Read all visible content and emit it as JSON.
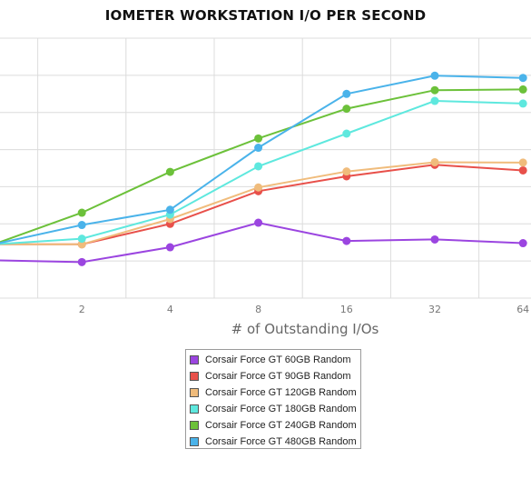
{
  "chart_data": {
    "type": "line",
    "title": "IOMETER WORKSTATION I/O PER SECOND",
    "xlabel": "# of Outstanding I/Os",
    "ylabel": "",
    "x": [
      1,
      2,
      4,
      8,
      16,
      32,
      64
    ],
    "x_tick_labels": [
      "",
      "2",
      "4",
      "8",
      "16",
      "32",
      "64"
    ],
    "x_scale": "log2",
    "ylim": [
      0,
      7
    ],
    "grid": true,
    "legend_position": "bottom",
    "series": [
      {
        "name": "Corsair Force GT 60GB Random",
        "color": "#9b45e0",
        "values": [
          1.02,
          0.97,
          1.37,
          2.03,
          1.54,
          1.58,
          1.48
        ]
      },
      {
        "name": "Corsair Force GT 90GB Random",
        "color": "#e8504a",
        "values": [
          1.45,
          1.45,
          2.0,
          2.88,
          3.28,
          3.59,
          3.44
        ]
      },
      {
        "name": "Corsair Force GT 120GB Random",
        "color": "#f0bc7c",
        "values": [
          1.45,
          1.45,
          2.13,
          2.98,
          3.41,
          3.66,
          3.65
        ]
      },
      {
        "name": "Corsair Force GT 180GB Random",
        "color": "#5ee8de",
        "values": [
          1.45,
          1.6,
          2.25,
          3.55,
          4.43,
          5.31,
          5.24
        ]
      },
      {
        "name": "Corsair Force GT 240GB Random",
        "color": "#6cc13a",
        "values": [
          1.45,
          2.3,
          3.4,
          4.3,
          5.1,
          5.6,
          5.62
        ]
      },
      {
        "name": "Corsair Force GT 480GB Random",
        "color": "#4ab3ea",
        "values": [
          1.45,
          1.97,
          2.38,
          4.05,
          5.5,
          5.99,
          5.93
        ]
      }
    ]
  }
}
